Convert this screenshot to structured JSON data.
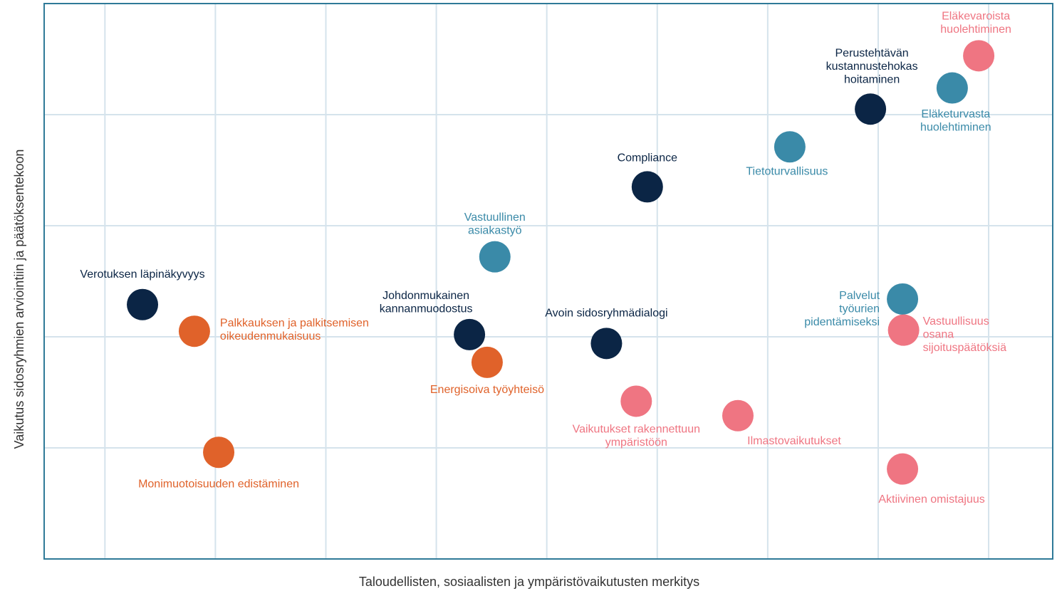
{
  "chart_data": {
    "type": "scatter",
    "x_label": "Taloudellisten, sosiaalisten ja ympäristövaikutusten merkitys",
    "y_label": "Vaikutus sidosryhmien arviointiin ja päätöksentekoon",
    "xlim": [
      0.45,
      9.58
    ],
    "ylim": [
      0,
      5
    ],
    "xticks": [
      1,
      2,
      3,
      4,
      5,
      6,
      7,
      8,
      9
    ],
    "yticks": [
      1,
      2,
      3,
      4
    ],
    "grid": true,
    "points": [
      {
        "label": [
          "Verotuksen läpinäkyvyys"
        ],
        "x": 1.34,
        "y": 2.29,
        "color": "#0b2545"
      },
      {
        "label": [
          "Palkkauksen ja palkitsemisen",
          "oikeudenmukaisuus"
        ],
        "x": 1.81,
        "y": 2.05,
        "color": "#e0622a"
      },
      {
        "label": [
          "Monimuotoisuuden edistäminen"
        ],
        "x": 2.03,
        "y": 0.96,
        "color": "#e0622a"
      },
      {
        "label": [
          "Johdonmukainen",
          "kannanmuodostus"
        ],
        "x": 4.3,
        "y": 2.02,
        "color": "#0b2545"
      },
      {
        "label": [
          "Vastuullinen",
          "asiakastyö"
        ],
        "x": 4.53,
        "y": 2.72,
        "color": "#3a8aa8"
      },
      {
        "label": [
          "Energisoiva työyhteisö"
        ],
        "x": 4.46,
        "y": 1.77,
        "color": "#e0622a"
      },
      {
        "label": [
          "Avoin sidosryhmädialogi"
        ],
        "x": 5.54,
        "y": 1.94,
        "color": "#0b2545"
      },
      {
        "label": [
          "Compliance"
        ],
        "x": 5.91,
        "y": 3.35,
        "color": "#0b2545"
      },
      {
        "label": [
          "Vaikutukset rakennettuun",
          "ympäristöön"
        ],
        "x": 5.81,
        "y": 1.42,
        "color": "#ef7582"
      },
      {
        "label": [
          "Ilmastovaikutukset"
        ],
        "x": 6.73,
        "y": 1.29,
        "color": "#ef7582"
      },
      {
        "label": [
          "Tietoturvallisuus"
        ],
        "x": 7.2,
        "y": 3.71,
        "color": "#3a8aa8"
      },
      {
        "label": [
          "Perustehtävän",
          "kustannustehokas",
          "hoitaminen"
        ],
        "x": 7.93,
        "y": 4.05,
        "color": "#0b2545"
      },
      {
        "label": [
          "Eläketurvasta",
          "huolehtiminen"
        ],
        "x": 8.67,
        "y": 4.24,
        "color": "#3a8aa8"
      },
      {
        "label": [
          "Eläkevaroista",
          "huolehtiminen"
        ],
        "x": 8.91,
        "y": 4.53,
        "color": "#ef7582"
      },
      {
        "label": [
          "Palvelut",
          "työurien",
          "pidentämiseksi"
        ],
        "x": 8.22,
        "y": 2.34,
        "color": "#3a8aa8"
      },
      {
        "label": [
          "Vastuullisuus",
          "osana",
          "sijoituspäätöksiä"
        ],
        "x": 8.23,
        "y": 2.06,
        "color": "#ef7582"
      },
      {
        "label": [
          "Aktiivinen omistajuus"
        ],
        "x": 8.22,
        "y": 0.81,
        "color": "#ef7582"
      }
    ]
  }
}
